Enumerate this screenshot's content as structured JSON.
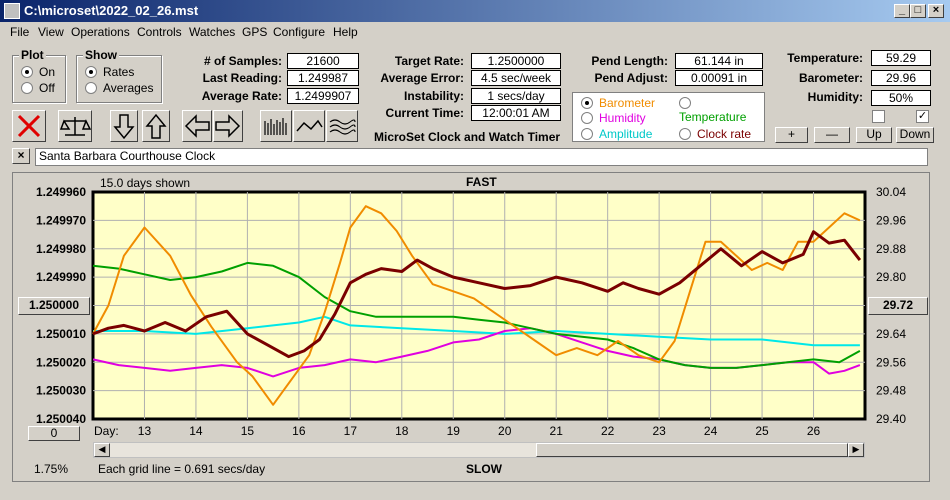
{
  "window": {
    "title": "C:\\microset\\2022_02_26.mst",
    "btn_min": "_",
    "btn_max": "□",
    "btn_close": "×"
  },
  "menu": [
    "File",
    "View",
    "Operations",
    "Controls",
    "Watches",
    "GPS",
    "Configure",
    "Help"
  ],
  "plot": {
    "title": "Plot",
    "on": "On",
    "off": "Off",
    "selected": "On"
  },
  "show": {
    "title": "Show",
    "rates": "Rates",
    "averages": "Averages",
    "selected": "Rates"
  },
  "stats": {
    "samples_label": "# of Samples:",
    "samples": "21600",
    "last_label": "Last Reading:",
    "last": "1.249987",
    "avg_label": "Average Rate:",
    "avg": "1.2499907"
  },
  "target": {
    "target_label": "Target Rate:",
    "target": "1.2500000",
    "err_label": "Average Error:",
    "err": "4.5 sec/week",
    "inst_label": "Instability:",
    "inst": "1 secs/day",
    "time_label": "Current Time:",
    "time": "12:00:01 AM",
    "caption": "MicroSet Clock and Watch Timer"
  },
  "pend": {
    "length_label": "Pend Length:",
    "length": "61.144 in",
    "adjust_label": "Pend Adjust:",
    "adjust": "0.00091 in"
  },
  "series_select": {
    "barometer": "Barometer",
    "temperature": "Temperature",
    "humidity": "Humidity",
    "amplitude": "Amplitude",
    "clock_rate": "Clock rate",
    "selected": "Barometer"
  },
  "env": {
    "temp_label": "Temperature:",
    "temp": "59.29",
    "baro_label": "Barometer:",
    "baro": "29.96",
    "hum_label": "Humidity:",
    "hum": "50%"
  },
  "adjust_buttons": {
    "plus": "+",
    "minus": "—",
    "up": "Up",
    "down": "Down"
  },
  "clock_name": {
    "x": "×",
    "name": "Santa Barbara Courthouse Clock"
  },
  "colors": {
    "barometer": "#f08c00",
    "temperature": "#00a000",
    "humidity": "#e000e0",
    "amplitude": "#00e8e8",
    "clock_rate": "#7a0000",
    "plot_bg": "#ffffc8"
  },
  "chart_data": {
    "type": "line",
    "top_label": "FAST",
    "bottom_label": "SLOW",
    "days_shown": "15.0 days shown",
    "grid_note": "Each grid line = 0.691 secs/day",
    "percent": "1.75%",
    "left_btn": "1.250000",
    "right_btn": "29.72",
    "zero_btn": "0",
    "xlabel": "Day:",
    "x_ticks": [
      "13",
      "14",
      "15",
      "16",
      "17",
      "18",
      "19",
      "20",
      "21",
      "22",
      "23",
      "24",
      "25",
      "26"
    ],
    "y_left_ticks": [
      "1.249960",
      "1.249970",
      "1.249980",
      "1.249990",
      "1.250000",
      "1.250010",
      "1.250020",
      "1.250030",
      "1.250040"
    ],
    "y_right_ticks": [
      "30.04",
      "29.96",
      "29.88",
      "29.80",
      "29.72",
      "29.64",
      "29.56",
      "29.48",
      "29.40"
    ],
    "xlim": [
      12,
      27
    ],
    "y_left_lim": [
      1.24996,
      1.25004
    ],
    "y_right_lim": [
      29.4,
      30.04
    ],
    "series": [
      {
        "name": "Barometer",
        "axis": "right",
        "x": [
          12.0,
          12.3,
          12.6,
          13.0,
          13.5,
          13.9,
          14.3,
          14.8,
          15.1,
          15.5,
          15.9,
          16.2,
          16.5,
          16.8,
          17.0,
          17.3,
          17.6,
          17.9,
          18.2,
          18.6,
          19.0,
          19.4,
          19.8,
          20.2,
          20.6,
          21.0,
          21.4,
          21.8,
          22.2,
          22.6,
          23.0,
          23.3,
          23.6,
          23.9,
          24.2,
          24.5,
          24.8,
          25.1,
          25.4,
          25.7,
          26.0,
          26.3,
          26.6,
          26.9
        ],
        "y": [
          29.64,
          29.72,
          29.86,
          29.94,
          29.86,
          29.75,
          29.66,
          29.56,
          29.52,
          29.44,
          29.52,
          29.58,
          29.7,
          29.84,
          29.94,
          30.0,
          29.98,
          29.93,
          29.86,
          29.78,
          29.76,
          29.74,
          29.7,
          29.66,
          29.62,
          29.58,
          29.6,
          29.58,
          29.62,
          29.58,
          29.56,
          29.62,
          29.76,
          29.9,
          29.9,
          29.86,
          29.82,
          29.84,
          29.82,
          29.9,
          29.9,
          29.94,
          29.98,
          29.96
        ]
      },
      {
        "name": "Temperature",
        "axis": "left",
        "x": [
          12.0,
          12.5,
          13.0,
          13.5,
          14.0,
          14.5,
          15.0,
          15.5,
          16.0,
          16.5,
          17.0,
          17.5,
          18.0,
          18.5,
          19.0,
          19.5,
          20.0,
          20.5,
          21.0,
          21.5,
          22.0,
          22.5,
          23.0,
          23.5,
          24.0,
          24.5,
          25.0,
          25.5,
          26.0,
          26.5,
          26.9
        ],
        "y": [
          1.249986,
          1.249987,
          1.249989,
          1.249991,
          1.24999,
          1.249988,
          1.249985,
          1.249986,
          1.24999,
          1.249997,
          1.250002,
          1.250004,
          1.250004,
          1.250004,
          1.250004,
          1.250005,
          1.250006,
          1.250008,
          1.25001,
          1.250011,
          1.250012,
          1.250015,
          1.250019,
          1.250021,
          1.250022,
          1.250022,
          1.250021,
          1.25002,
          1.250019,
          1.25002,
          1.250016
        ]
      },
      {
        "name": "Humidity",
        "axis": "left",
        "x": [
          12.0,
          12.5,
          13.0,
          13.5,
          14.0,
          14.5,
          15.0,
          15.5,
          16.0,
          16.5,
          17.0,
          17.5,
          18.0,
          18.5,
          19.0,
          19.5,
          20.0,
          20.5,
          21.0,
          21.5,
          22.0,
          22.5,
          23.0,
          23.5,
          24.0,
          24.5,
          25.0,
          25.5,
          26.0,
          26.3,
          26.6,
          26.9
        ],
        "y": [
          1.250019,
          1.250021,
          1.250022,
          1.250023,
          1.250022,
          1.250021,
          1.250022,
          1.250025,
          1.250022,
          1.250021,
          1.250019,
          1.25002,
          1.250018,
          1.250016,
          1.250013,
          1.250012,
          1.250009,
          1.250008,
          1.25001,
          1.250013,
          1.250016,
          1.250018,
          1.250019,
          1.250021,
          1.250022,
          1.250022,
          1.250021,
          1.25002,
          1.25002,
          1.250024,
          1.250023,
          1.250021
        ]
      },
      {
        "name": "Amplitude",
        "axis": "left",
        "x": [
          12.0,
          13.0,
          14.0,
          15.0,
          16.0,
          16.5,
          17.0,
          18.0,
          19.0,
          20.0,
          21.0,
          22.0,
          23.0,
          24.0,
          25.0,
          26.0,
          26.9
        ],
        "y": [
          1.250009,
          1.250009,
          1.25001,
          1.250008,
          1.250006,
          1.250004,
          1.250007,
          1.250008,
          1.250009,
          1.25001,
          1.250009,
          1.25001,
          1.250011,
          1.250012,
          1.250012,
          1.250014,
          1.250014
        ]
      },
      {
        "name": "Clock rate",
        "axis": "left",
        "x": [
          12.0,
          12.3,
          12.6,
          13.0,
          13.4,
          13.8,
          14.2,
          14.6,
          15.0,
          15.4,
          15.8,
          16.1,
          16.4,
          16.7,
          17.0,
          17.3,
          17.6,
          18.0,
          18.3,
          18.6,
          19.0,
          19.5,
          20.0,
          20.5,
          21.0,
          21.5,
          22.0,
          22.3,
          22.6,
          23.0,
          23.4,
          23.8,
          24.2,
          24.6,
          25.0,
          25.4,
          25.8,
          26.0,
          26.3,
          26.6,
          26.9
        ],
        "y": [
          1.25001,
          1.250008,
          1.250007,
          1.250009,
          1.250006,
          1.250009,
          1.250004,
          1.250002,
          1.25001,
          1.250014,
          1.250018,
          1.250016,
          1.250012,
          1.250003,
          1.249992,
          1.249989,
          1.249987,
          1.249988,
          1.249984,
          1.249987,
          1.24999,
          1.249992,
          1.249994,
          1.249993,
          1.24999,
          1.249992,
          1.249995,
          1.249992,
          1.249994,
          1.249996,
          1.249992,
          1.249986,
          1.24998,
          1.249986,
          1.249981,
          1.249985,
          1.249982,
          1.249974,
          1.249978,
          1.249977,
          1.249984
        ]
      }
    ]
  }
}
